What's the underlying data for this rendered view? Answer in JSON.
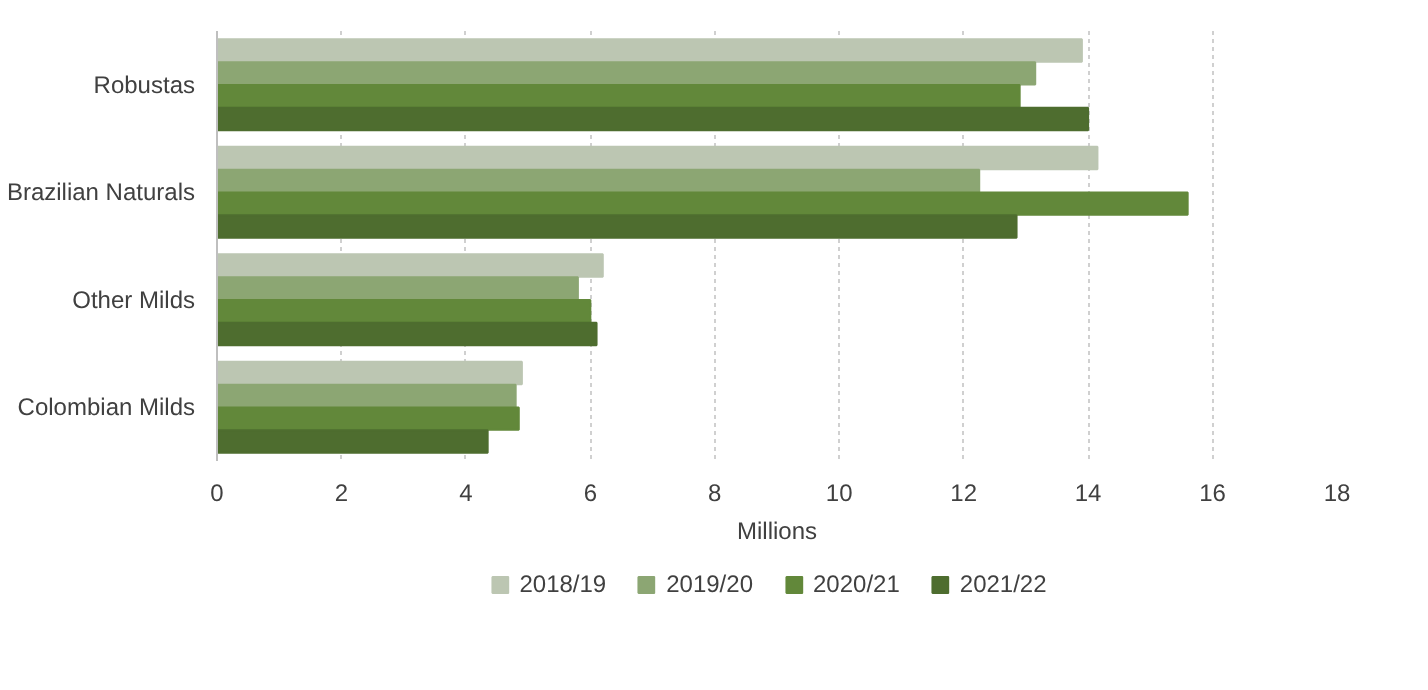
{
  "chart_data": {
    "type": "bar",
    "orientation": "horizontal",
    "xlabel": "Millions",
    "categories": [
      "Robustas",
      "Brazilian Naturals",
      "Other Milds",
      "Colombian Milds"
    ],
    "series": [
      {
        "name": "2018/19",
        "color": "#bcc6b2",
        "values": [
          13.9,
          14.15,
          6.2,
          4.9
        ]
      },
      {
        "name": "2019/20",
        "color": "#8ca673",
        "values": [
          13.15,
          12.25,
          5.8,
          4.8
        ]
      },
      {
        "name": "2020/21",
        "color": "#62883a",
        "values": [
          12.9,
          15.6,
          6.0,
          4.85
        ]
      },
      {
        "name": "2021/22",
        "color": "#4e6d2f",
        "values": [
          14.0,
          12.85,
          6.1,
          4.35
        ]
      }
    ],
    "xlim": [
      0,
      18
    ],
    "xticks": [
      0,
      2,
      4,
      6,
      8,
      10,
      12,
      14,
      16,
      18
    ],
    "grid": "x",
    "legend": "bottom"
  }
}
